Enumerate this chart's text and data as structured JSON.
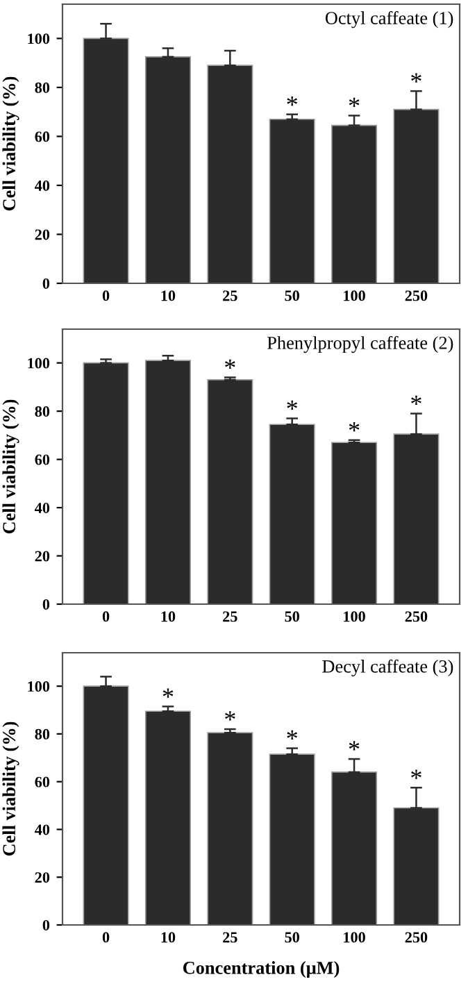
{
  "chart_data": [
    {
      "type": "bar",
      "title": "Octyl caffeate (1)",
      "ylabel": "Cell viability (%)",
      "categories": [
        "0",
        "10",
        "25",
        "50",
        "100",
        "250"
      ],
      "color": "#2b2b2b",
      "values": [
        100,
        92.5,
        89,
        67,
        64.5,
        71
      ],
      "errors": [
        [
          100,
          106
        ],
        [
          92.5,
          96
        ],
        [
          89,
          95
        ],
        [
          67,
          69
        ],
        [
          64.5,
          68.5
        ],
        [
          71,
          78.5
        ]
      ],
      "annotations": [
        {
          "text": "*",
          "x": "50",
          "y": 69
        },
        {
          "text": "*",
          "x": "100",
          "y": 68.5
        },
        {
          "text": "*",
          "x": "250",
          "y": 78.5
        }
      ],
      "ylim": [
        0,
        114
      ],
      "yticks": [
        0,
        20,
        40,
        60,
        80,
        100
      ],
      "grid": false,
      "legend": false
    },
    {
      "type": "bar",
      "title": "Phenylpropyl caffeate (2)",
      "ylabel": "Cell viability (%)",
      "categories": [
        "0",
        "10",
        "25",
        "50",
        "100",
        "250"
      ],
      "color": "#2b2b2b",
      "values": [
        100,
        101,
        93,
        74.5,
        67,
        70.5
      ],
      "errors": [
        [
          100,
          101.5
        ],
        [
          101,
          103
        ],
        [
          93,
          94
        ],
        [
          74.5,
          77
        ],
        [
          67,
          68
        ],
        [
          70.5,
          79
        ]
      ],
      "annotations": [
        {
          "text": "*",
          "x": "25",
          "y": 94
        },
        {
          "text": "*",
          "x": "50",
          "y": 77
        },
        {
          "text": "*",
          "x": "100",
          "y": 68
        },
        {
          "text": "*",
          "x": "250",
          "y": 79
        }
      ],
      "ylim": [
        0,
        114
      ],
      "yticks": [
        0,
        20,
        40,
        60,
        80,
        100
      ],
      "grid": false,
      "legend": false
    },
    {
      "type": "bar",
      "title": "Decyl caffeate (3)",
      "ylabel": "Cell viability (%)",
      "xlabel": "Concentration (μM)",
      "categories": [
        "0",
        "10",
        "25",
        "50",
        "100",
        "250"
      ],
      "color": "#2b2b2b",
      "values": [
        100,
        89.5,
        80.5,
        71.5,
        64,
        49
      ],
      "errors": [
        [
          100,
          104
        ],
        [
          89.5,
          91.5
        ],
        [
          80.5,
          82
        ],
        [
          71.5,
          74
        ],
        [
          64,
          69.5
        ],
        [
          49,
          57.5
        ]
      ],
      "annotations": [
        {
          "text": "*",
          "x": "10",
          "y": 91.5
        },
        {
          "text": "*",
          "x": "25",
          "y": 82
        },
        {
          "text": "*",
          "x": "50",
          "y": 74
        },
        {
          "text": "*",
          "x": "100",
          "y": 69.5
        },
        {
          "text": "*",
          "x": "250",
          "y": 57.5
        }
      ],
      "ylim": [
        0,
        114
      ],
      "yticks": [
        0,
        20,
        40,
        60,
        80,
        100
      ],
      "grid": false,
      "legend": false
    }
  ]
}
